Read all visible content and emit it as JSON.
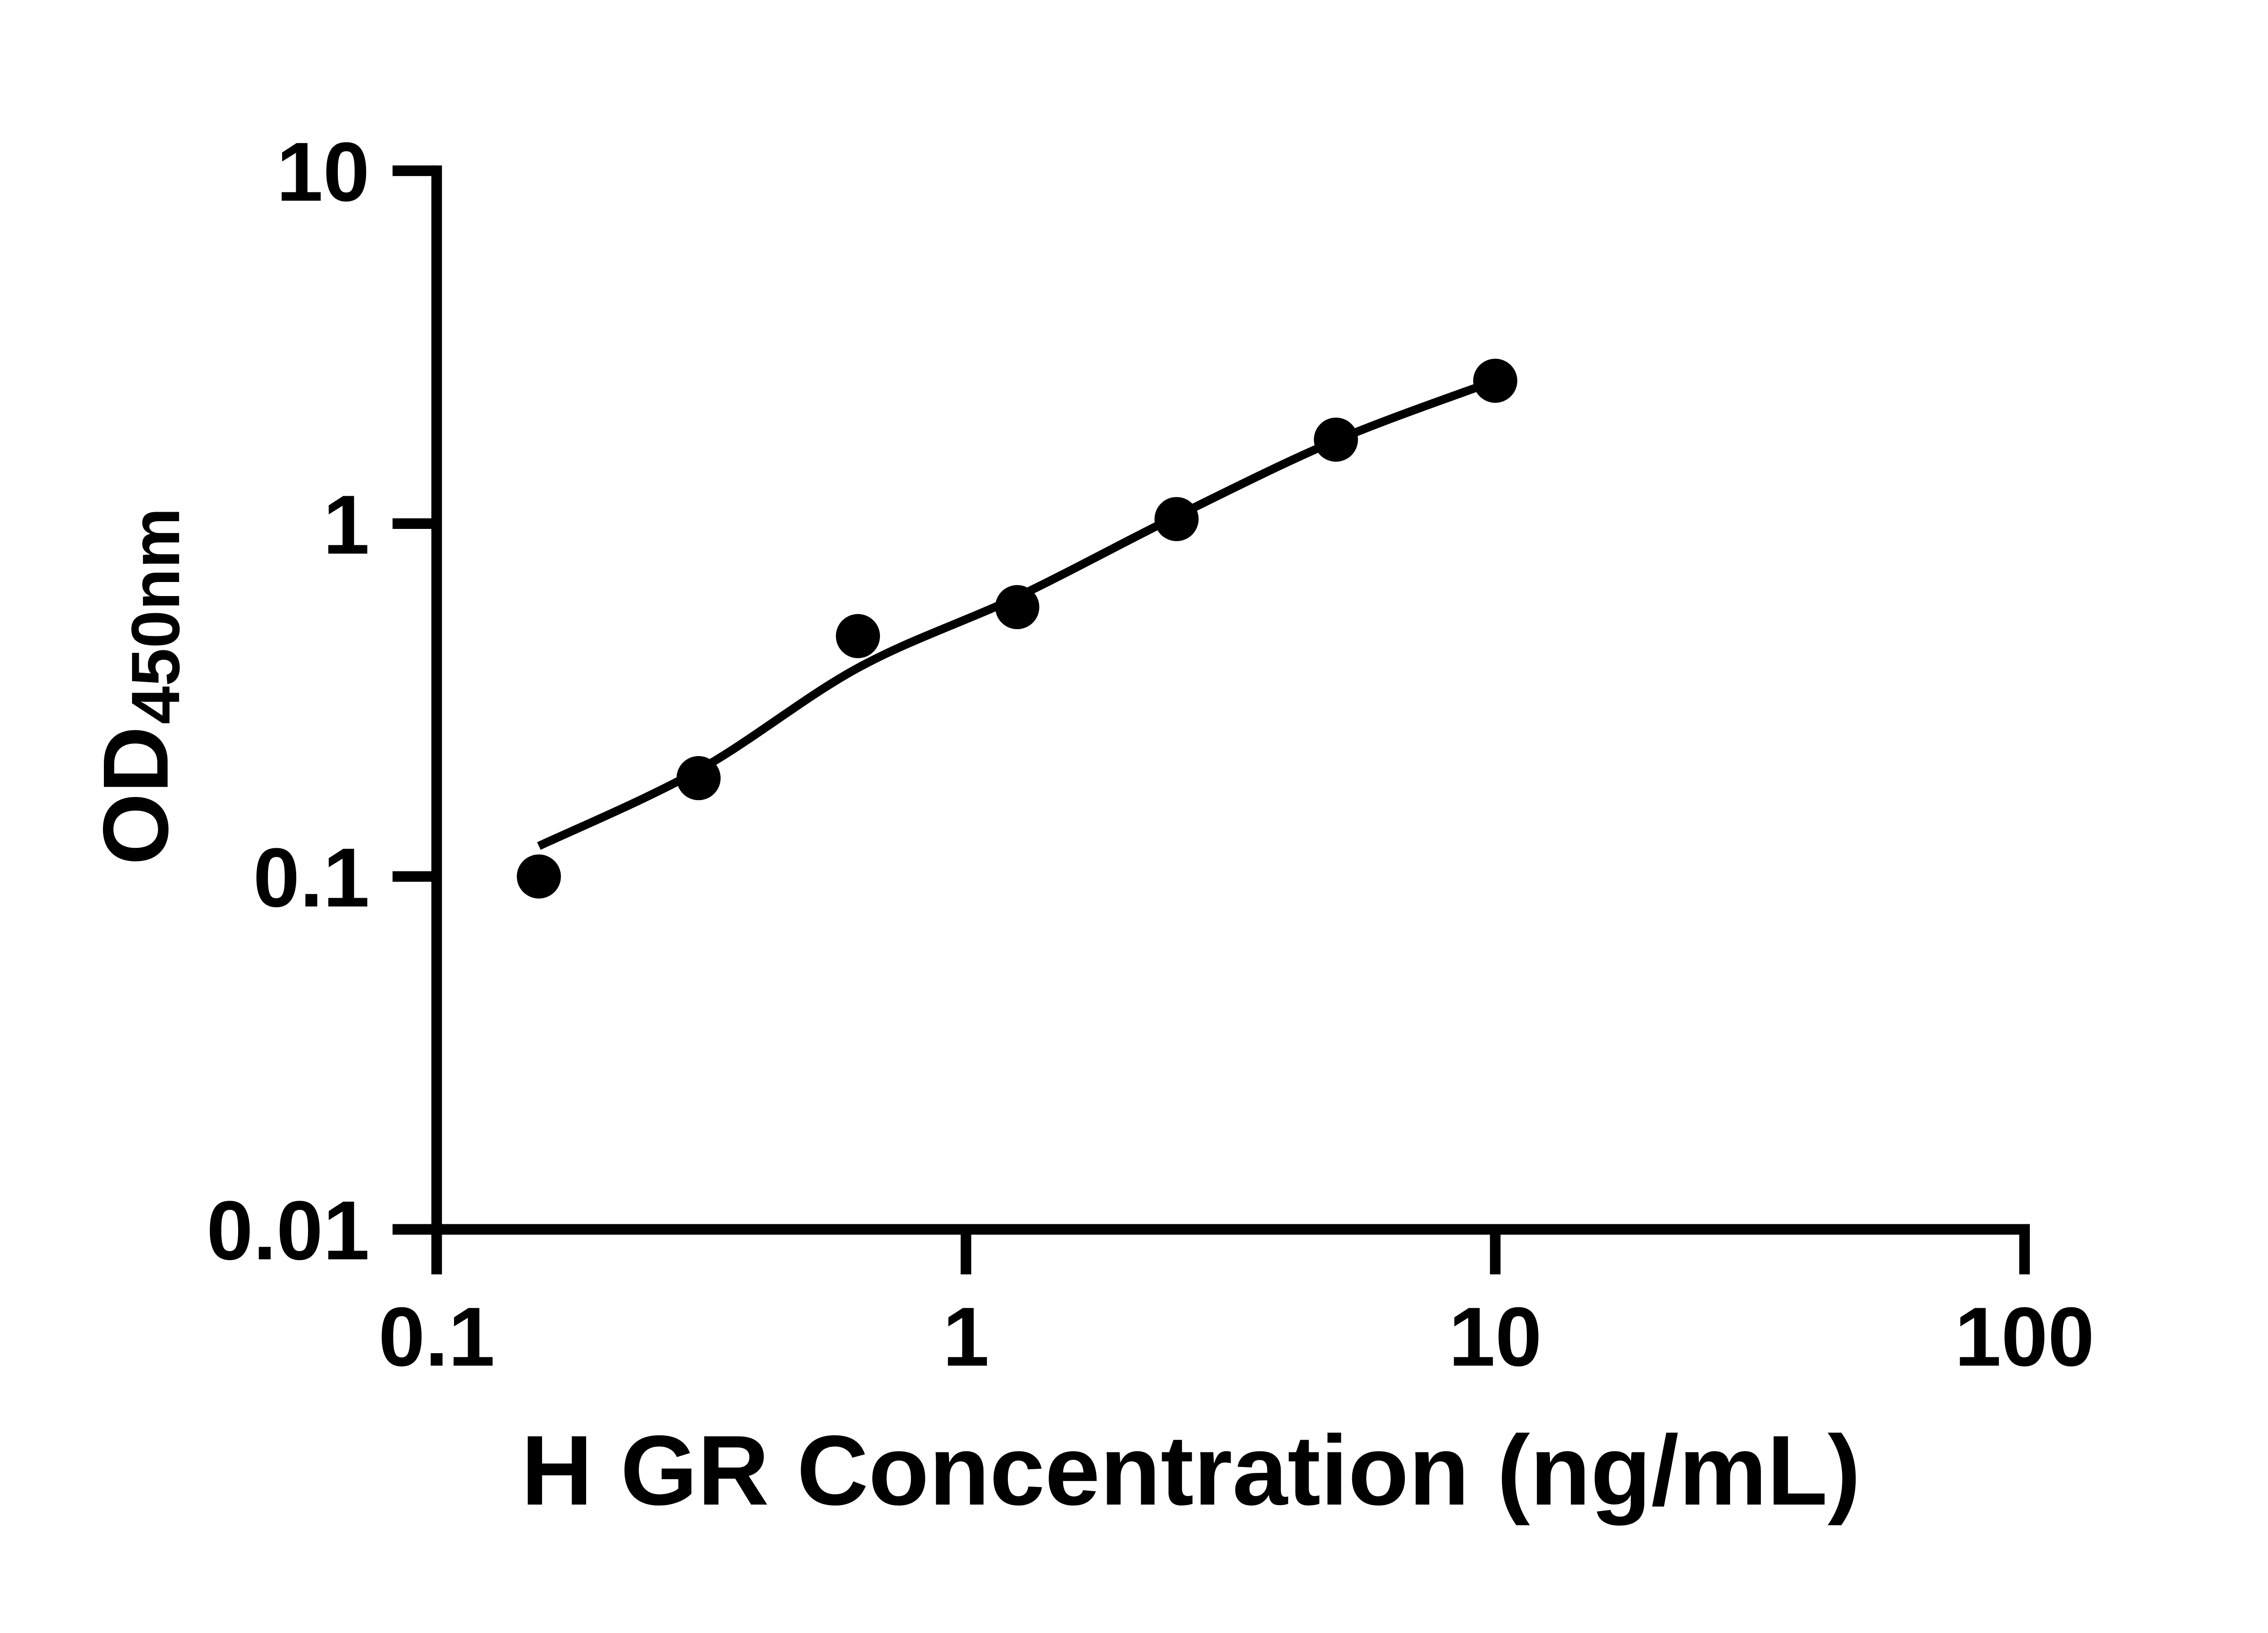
{
  "figure": {
    "background": "#ffffff",
    "ink": "#000000"
  },
  "chart_data": {
    "type": "scatter",
    "title": "",
    "xlabel": "H GR Concentration (ng/mL)",
    "ylabel": "OD",
    "ylabel_subscript": "450nm",
    "x_scale": "log",
    "y_scale": "log",
    "xlim": [
      0.1,
      100
    ],
    "ylim": [
      0.01,
      10
    ],
    "grid": false,
    "legend": "none",
    "x_ticks": [
      {
        "v": 0.1,
        "label": "0.1"
      },
      {
        "v": 1,
        "label": "1"
      },
      {
        "v": 10,
        "label": "10"
      },
      {
        "v": 100,
        "label": "100"
      }
    ],
    "y_ticks": [
      {
        "v": 10,
        "label": "10"
      },
      {
        "v": 1,
        "label": "1"
      },
      {
        "v": 0.1,
        "label": "0.1"
      },
      {
        "v": 0.01,
        "label": "0.01"
      }
    ],
    "series": [
      {
        "name": "standards",
        "type": "scatter",
        "marker": "filled-circle",
        "color": "#000000",
        "x": [
          0.156,
          0.3125,
          0.625,
          1.25,
          2.5,
          5,
          10
        ],
        "y": [
          0.1,
          0.19,
          0.48,
          0.58,
          1.03,
          1.73,
          2.54
        ]
      },
      {
        "name": "fit-curve",
        "type": "line",
        "color": "#000000",
        "x": [
          0.156,
          0.3125,
          0.625,
          1.25,
          2.5,
          5,
          10
        ],
        "y": [
          0.122,
          0.2,
          0.39,
          0.62,
          1.05,
          1.72,
          2.54
        ]
      }
    ]
  }
}
